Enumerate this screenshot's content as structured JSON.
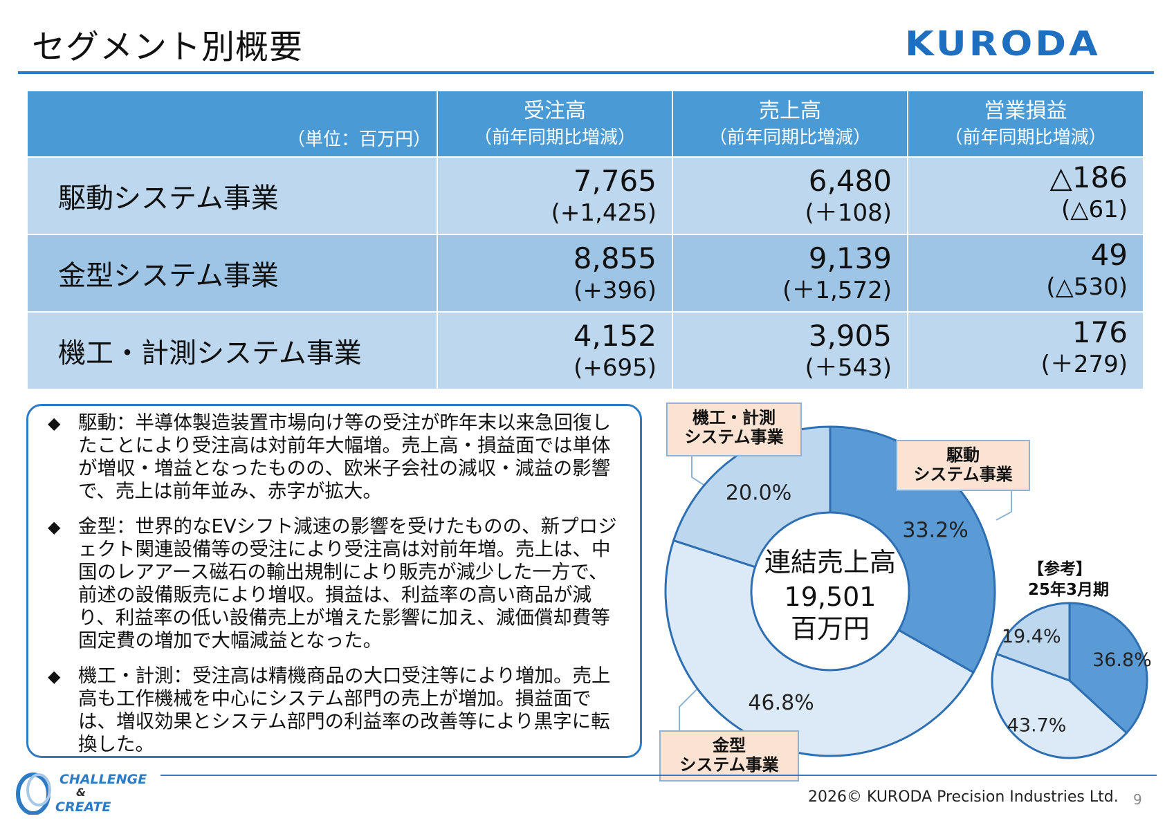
{
  "header": {
    "title": "セグメント別概要",
    "logo": "KURODA"
  },
  "table": {
    "unit_label": "（単位：百万円）",
    "columns": [
      {
        "label": "受注高",
        "sub": "（前年同期比増減）"
      },
      {
        "label": "売上高",
        "sub": "（前年同期比増減）"
      },
      {
        "label": "営業損益",
        "sub": "（前年同期比増減）"
      }
    ],
    "rows": [
      {
        "name": "駆動システム事業",
        "cells": [
          {
            "v": "7,765",
            "d": "(+1,425)"
          },
          {
            "v": "6,480",
            "d": "(＋108)"
          },
          {
            "v": "△186",
            "d": "(△61)"
          }
        ]
      },
      {
        "name": "金型システム事業",
        "cells": [
          {
            "v": "8,855",
            "d": "(+396)"
          },
          {
            "v": "9,139",
            "d": "(＋1,572)"
          },
          {
            "v": "49",
            "d": "(△530)"
          }
        ]
      },
      {
        "name": "機工・計測システム事業",
        "cells": [
          {
            "v": "4,152",
            "d": "(+695)"
          },
          {
            "v": "3,905",
            "d": "(＋543)"
          },
          {
            "v": "176",
            "d": "(＋279)"
          }
        ]
      }
    ]
  },
  "notes": [
    {
      "bullet": "◆",
      "text": "駆動：半導体製造装置市場向け等の受注が昨年末以来急回復したことにより受注高は対前年大幅増。売上高・損益面では単体が増収・増益となったものの、欧米子会社の減収・減益の影響で、売上は前年並み、赤字が拡大。"
    },
    {
      "bullet": "◆",
      "text": "金型：世界的なEVシフト減速の影響を受けたものの、新プロジェクト関連設備等の受注により受注高は対前年増。売上は、中国のレアアース磁石の輸出規制により販売が減少した一方で、前述の設備販売により増収。損益は、利益率の高い商品が減り、利益率の低い設備売上が増えた影響に加え、減価償却費等固定費の増加で大幅減益となった。"
    },
    {
      "bullet": "◆",
      "text": "機工・計測：受注高は精機商品の大口受注等により増加。売上高も工作機械を中心にシステム部門の売上が増加。損益面では、増収効果とシステム部門の利益率の改善等により黒字に転換した。"
    }
  ],
  "chart_data": [
    {
      "type": "pie",
      "center_label": [
        "連結売上高",
        "19,501",
        "百万円"
      ],
      "slices": [
        {
          "name": "駆動\nシステム事業",
          "value": 33.2,
          "label": "33.2%",
          "color": "#5b9bd5"
        },
        {
          "name": "金型\nシステム事業",
          "value": 46.8,
          "label": "46.8%",
          "color": "#dce9f6"
        },
        {
          "name": "機工・計測\nシステム事業",
          "value": 20.0,
          "label": "20.0%",
          "color": "#bdd7ee"
        }
      ]
    },
    {
      "type": "pie",
      "title": "【参考】\n25年3月期",
      "slices": [
        {
          "value": 36.8,
          "label": "36.8%",
          "color": "#5b9bd5"
        },
        {
          "value": 43.7,
          "label": "43.7%",
          "color": "#dce9f6"
        },
        {
          "value": 19.4,
          "label": "19.4%",
          "color": "#bdd7ee"
        }
      ]
    }
  ],
  "callouts": {
    "kiko": "機工・計測\nシステム事業",
    "kudo": "駆動\nシステム事業",
    "kanagata": "金型\nシステム事業"
  },
  "reference_title": "【参考】\n25年3月期",
  "footer": {
    "slogan_1": "CHALLENGE",
    "slogan_2": "&",
    "slogan_3": "CREATE",
    "copyright": "2026© KURODA Precision Industries Ltd.",
    "page": "9"
  },
  "colors": {
    "accent": "#2e7bc4",
    "header_cell": "#4a9ad6",
    "row_light": "#bcd7ee",
    "row_mid": "#9fc5e6",
    "callout_fill": "#fbe3d4"
  }
}
